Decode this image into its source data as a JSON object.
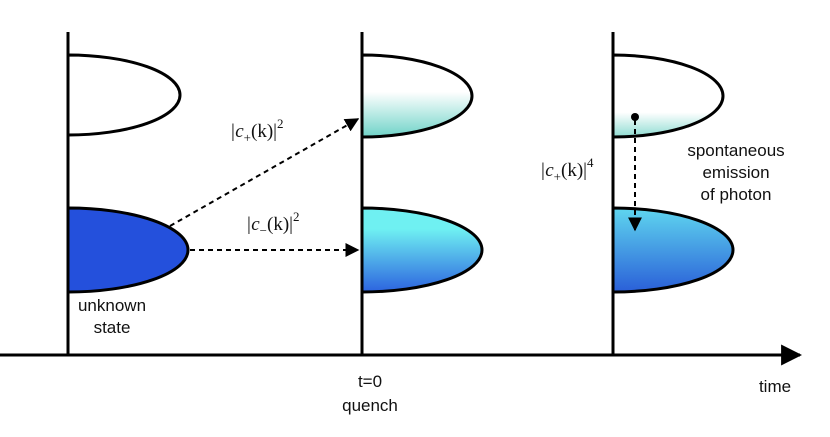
{
  "labels": {
    "unknown_state": [
      "unknown",
      "state"
    ],
    "quench": [
      "t=0",
      "quench"
    ],
    "time": "time",
    "emission": [
      "spontaneous",
      "emission",
      "of photon"
    ]
  },
  "coefficients": [
    {
      "pre": "|c",
      "sub": "+",
      "post": "(k)|",
      "sup": "2"
    },
    {
      "pre": "|c",
      "sub": "−",
      "post": "(k)|",
      "sup": "2"
    },
    {
      "pre": "|c",
      "sub": "+",
      "post": "(k)|",
      "sup": "4"
    }
  ]
}
